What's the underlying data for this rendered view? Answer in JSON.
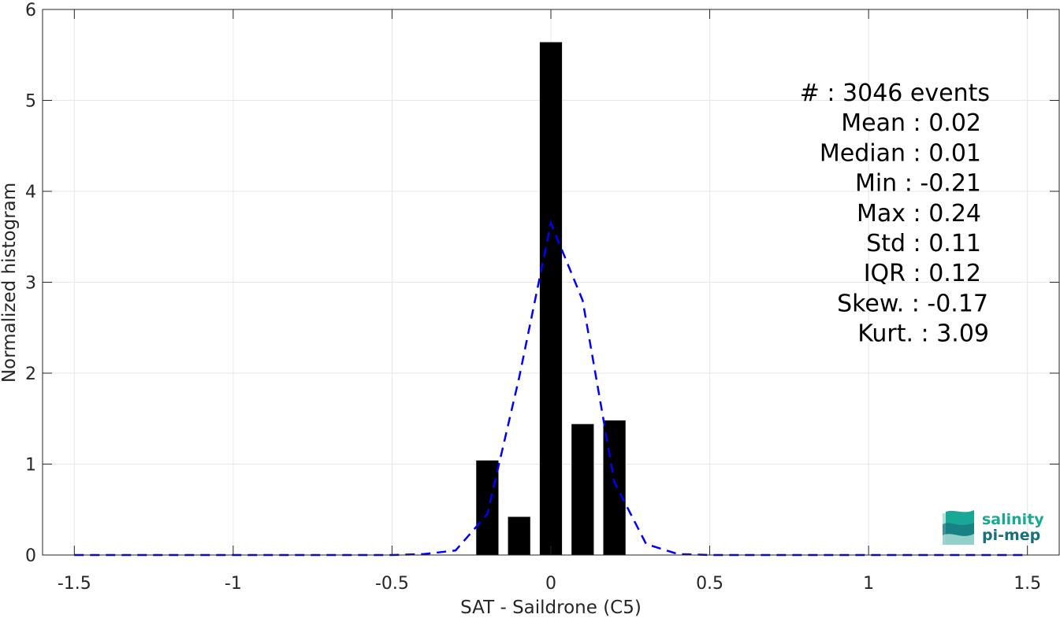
{
  "chart_data": {
    "type": "bar",
    "xlabel": "SAT - Saildrone (C5)",
    "ylabel": "Normalized histogram",
    "xlim": [
      -1.6,
      1.6
    ],
    "ylim": [
      0,
      6
    ],
    "xticks": [
      -1.5,
      -1,
      -0.5,
      0,
      0.5,
      1,
      1.5
    ],
    "xtick_labels": [
      "-1.5",
      "-1",
      "-0.5",
      "0",
      "0.5",
      "1",
      "1.5"
    ],
    "yticks": [
      0,
      1,
      2,
      3,
      4,
      5,
      6
    ],
    "ytick_labels": [
      "0",
      "1",
      "2",
      "3",
      "4",
      "5",
      "6"
    ],
    "grid": true,
    "bar_color": "#000000",
    "bar_width": 0.07,
    "bars": [
      {
        "x": -0.2,
        "value": 1.04
      },
      {
        "x": -0.1,
        "value": 0.42
      },
      {
        "x": 0.0,
        "value": 5.64
      },
      {
        "x": 0.1,
        "value": 1.44
      },
      {
        "x": 0.2,
        "value": 1.48
      }
    ],
    "fit_curve": {
      "style": "dashed",
      "color": "#0000ff",
      "x": [
        -1.5,
        -1.4,
        -1.3,
        -1.2,
        -1.1,
        -1.0,
        -0.9,
        -0.8,
        -0.7,
        -0.6,
        -0.5,
        -0.4,
        -0.3,
        -0.2,
        -0.1,
        0.0,
        0.1,
        0.2,
        0.3,
        0.4,
        0.5,
        0.6,
        0.7,
        0.8,
        0.9,
        1.0,
        1.1,
        1.2,
        1.3,
        1.4,
        1.5
      ],
      "y": [
        0,
        0,
        0,
        0,
        0,
        0,
        0,
        0,
        0,
        0,
        0,
        0.01,
        0.05,
        0.45,
        1.95,
        3.65,
        2.8,
        0.8,
        0.12,
        0.01,
        0,
        0,
        0,
        0,
        0,
        0,
        0,
        0,
        0,
        0,
        0
      ]
    },
    "stats": [
      {
        "label": "#  ",
        "value": ": 3046 events"
      },
      {
        "label": "Mean",
        "value": ": 0.02"
      },
      {
        "label": "Median",
        "value": ": 0.01"
      },
      {
        "label": "Min",
        "value": ": -0.21"
      },
      {
        "label": "Max",
        "value": ": 0.24"
      },
      {
        "label": "Std",
        "value": ": 0.11"
      },
      {
        "label": "IQR",
        "value": ": 0.12"
      },
      {
        "label": "Skew.",
        "value": ": -0.17"
      },
      {
        "label": "Kurt.",
        "value": ": 3.09"
      }
    ]
  },
  "logo": {
    "line1": "salinity",
    "line2": "pi-mep",
    "color1": "#1aa896",
    "color2": "#17707a"
  }
}
